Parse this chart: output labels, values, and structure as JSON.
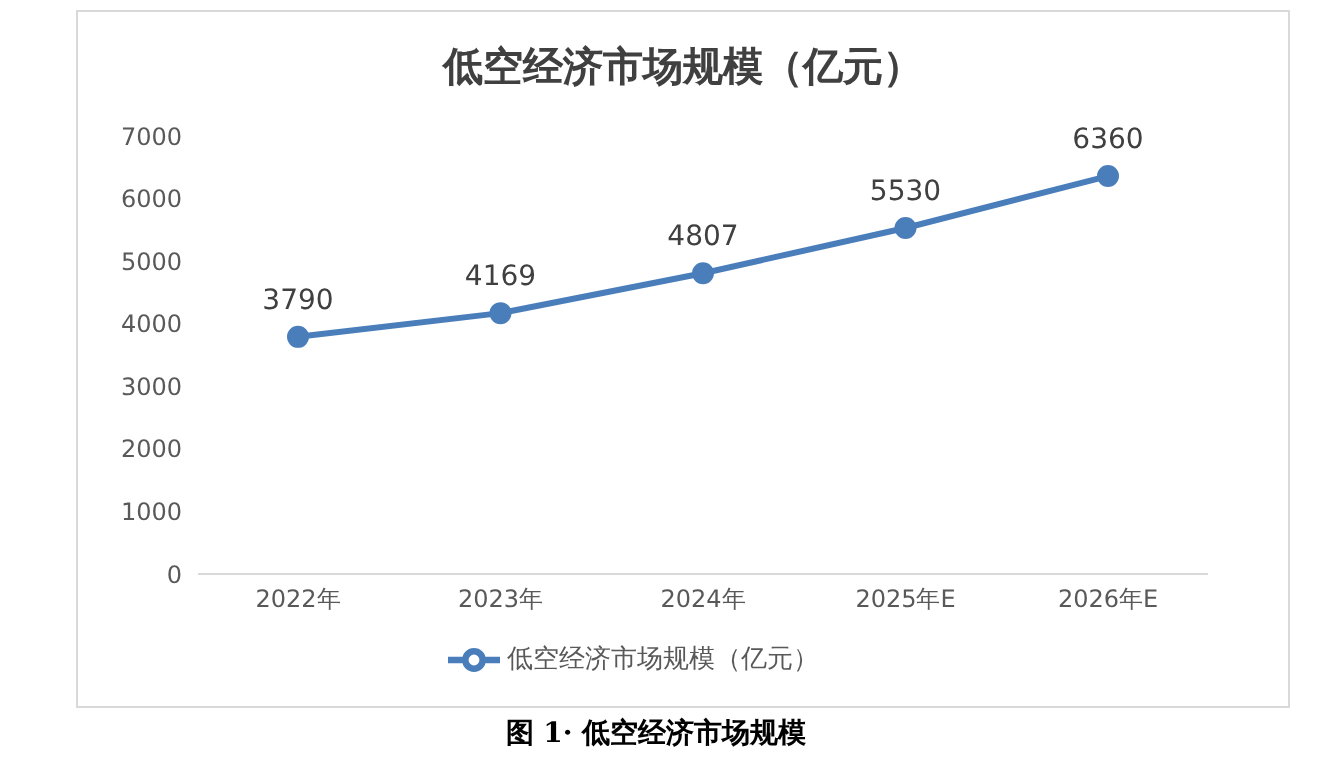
{
  "chart_data": {
    "type": "line",
    "title": "低空经济市场规模（亿元）",
    "categories": [
      "2022年",
      "2023年",
      "2024年",
      "2025年E",
      "2026年E"
    ],
    "series": [
      {
        "name": "低空经济市场规模（亿元）",
        "color": "#4a7ebb",
        "values": [
          3790,
          4169,
          4807,
          5530,
          6360
        ]
      }
    ],
    "ylim": [
      0,
      7000
    ],
    "yticks": [
      0,
      1000,
      2000,
      3000,
      4000,
      5000,
      6000,
      7000
    ],
    "grid": false,
    "legend": "bottom",
    "marker": "circle",
    "line_style": "solid",
    "data_labels": true,
    "annotations": [
      "图 1· 低空经济市场规模"
    ]
  }
}
